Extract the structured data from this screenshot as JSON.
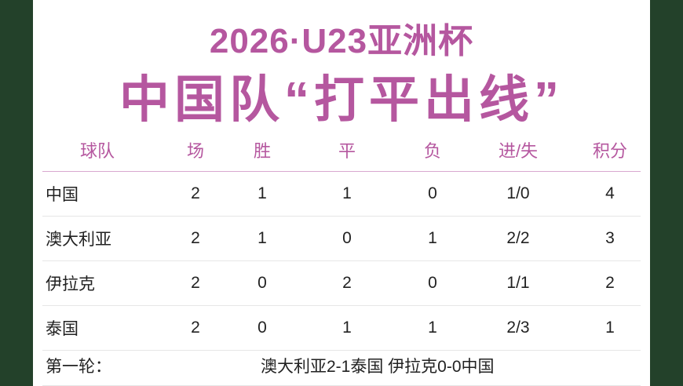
{
  "header": {
    "title": "2026·U23亚洲杯",
    "subtitle": "中国队“打平出线”"
  },
  "table": {
    "columns": [
      "球队",
      "场",
      "胜",
      "平",
      "负",
      "进/失",
      "积分"
    ],
    "rows": [
      [
        "中国",
        "2",
        "1",
        "1",
        "0",
        "1/0",
        "4"
      ],
      [
        "澳大利亚",
        "2",
        "1",
        "0",
        "1",
        "2/2",
        "3"
      ],
      [
        "伊拉克",
        "2",
        "0",
        "2",
        "0",
        "1/1",
        "2"
      ],
      [
        "泰国",
        "2",
        "0",
        "1",
        "1",
        "2/3",
        "1"
      ]
    ]
  },
  "footer": {
    "label": "第一轮：",
    "results": "澳大利亚2-1泰国 伊拉克0-0中国"
  }
}
